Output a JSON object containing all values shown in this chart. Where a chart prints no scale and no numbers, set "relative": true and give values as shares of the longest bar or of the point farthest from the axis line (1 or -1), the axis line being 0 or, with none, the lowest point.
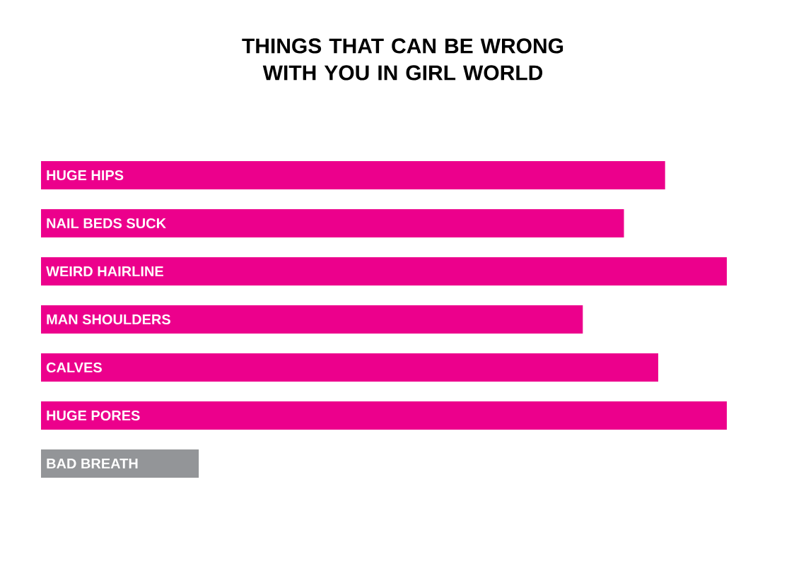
{
  "chart_data": {
    "type": "bar",
    "orientation": "horizontal",
    "relative": true,
    "title": "THINGS THAT CAN BE WRONG WITH YOU IN GIRL WORLD",
    "categories": [
      "HUGE HIPS",
      "NAIL BEDS SUCK",
      "WEIRD HAIRLINE",
      "MAN SHOULDERS",
      "CALVES",
      "HUGE PORES",
      "BAD BREATH"
    ],
    "values": [
      0.91,
      0.85,
      1,
      0.79,
      0.9,
      1,
      0.23
    ],
    "colors": [
      "#ec008c",
      "#ec008c",
      "#ec008c",
      "#ec008c",
      "#ec008c",
      "#ec008c",
      "#939598"
    ]
  }
}
